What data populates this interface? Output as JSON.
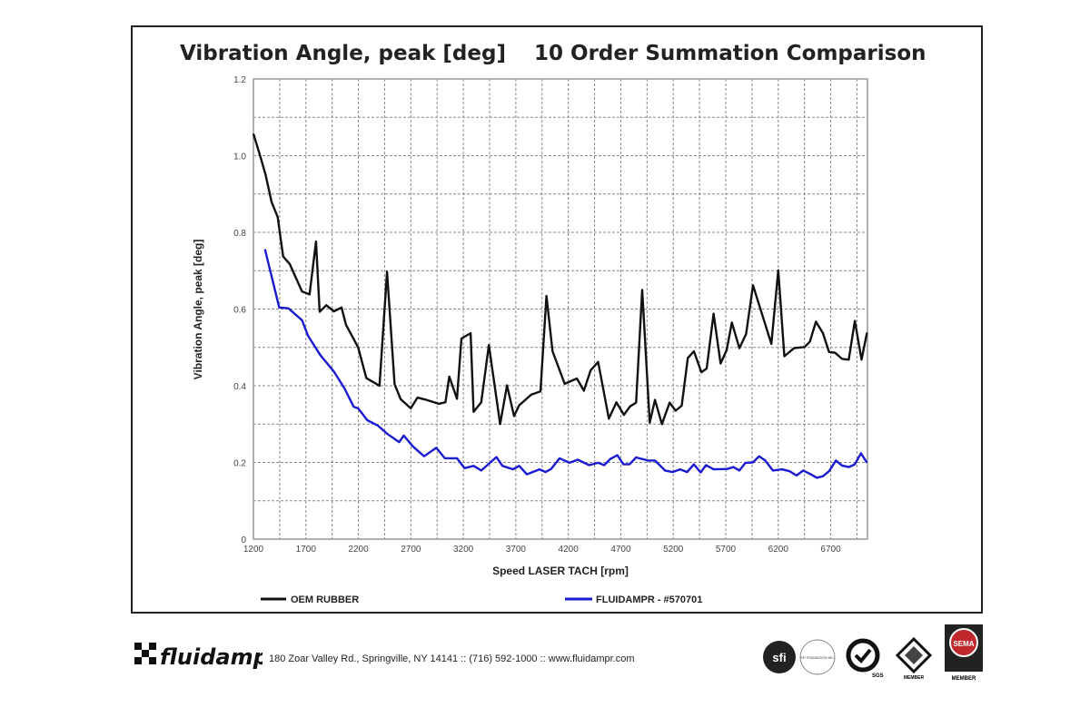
{
  "chart_data": {
    "type": "line",
    "title_left": "Vibration Angle, peak [deg]",
    "title_right": "10 Order Summation Comparison",
    "xlabel": "Speed LASER TACH [rpm]",
    "ylabel": "Vibration Angle, peak [deg]",
    "xlim": [
      1200,
      7050
    ],
    "ylim": [
      0,
      1.2
    ],
    "x_ticks": [
      1200,
      1700,
      2200,
      2700,
      3200,
      3700,
      4200,
      4700,
      5200,
      5700,
      6200,
      6700
    ],
    "y_ticks": [
      "0",
      "0.2",
      "0.4",
      "0.6",
      "0.8",
      "1.0",
      "1.2"
    ],
    "grid": true,
    "legend_position": "bottom",
    "series": [
      {
        "name": "OEM RUBBER",
        "color": "#111111",
        "points": [
          [
            1200,
            1.057
          ],
          [
            1258,
            1.005
          ],
          [
            1316,
            0.95
          ],
          [
            1373,
            0.879
          ],
          [
            1431,
            0.84
          ],
          [
            1483,
            0.737
          ],
          [
            1547,
            0.717
          ],
          [
            1663,
            0.646
          ],
          [
            1735,
            0.638
          ],
          [
            1796,
            0.776
          ],
          [
            1831,
            0.593
          ],
          [
            1894,
            0.61
          ],
          [
            1967,
            0.594
          ],
          [
            2039,
            0.604
          ],
          [
            2082,
            0.559
          ],
          [
            2198,
            0.5
          ],
          [
            2276,
            0.42
          ],
          [
            2401,
            0.4
          ],
          [
            2473,
            0.697
          ],
          [
            2545,
            0.404
          ],
          [
            2603,
            0.365
          ],
          [
            2699,
            0.341
          ],
          [
            2763,
            0.369
          ],
          [
            2849,
            0.363
          ],
          [
            2965,
            0.353
          ],
          [
            3029,
            0.357
          ],
          [
            3066,
            0.424
          ],
          [
            3139,
            0.366
          ],
          [
            3182,
            0.523
          ],
          [
            3269,
            0.537
          ],
          [
            3298,
            0.332
          ],
          [
            3370,
            0.357
          ],
          [
            3443,
            0.506
          ],
          [
            3550,
            0.3
          ],
          [
            3616,
            0.401
          ],
          [
            3683,
            0.321
          ],
          [
            3732,
            0.349
          ],
          [
            3848,
            0.377
          ],
          [
            3935,
            0.385
          ],
          [
            3992,
            0.634
          ],
          [
            4050,
            0.49
          ],
          [
            4166,
            0.405
          ],
          [
            4282,
            0.419
          ],
          [
            4348,
            0.387
          ],
          [
            4412,
            0.44
          ],
          [
            4484,
            0.462
          ],
          [
            4586,
            0.314
          ],
          [
            4658,
            0.357
          ],
          [
            4730,
            0.324
          ],
          [
            4788,
            0.346
          ],
          [
            4846,
            0.356
          ],
          [
            4904,
            0.65
          ],
          [
            4976,
            0.304
          ],
          [
            5026,
            0.363
          ],
          [
            5092,
            0.3
          ],
          [
            5165,
            0.356
          ],
          [
            5222,
            0.335
          ],
          [
            5280,
            0.348
          ],
          [
            5338,
            0.472
          ],
          [
            5396,
            0.49
          ],
          [
            5468,
            0.435
          ],
          [
            5518,
            0.445
          ],
          [
            5584,
            0.588
          ],
          [
            5651,
            0.458
          ],
          [
            5709,
            0.493
          ],
          [
            5758,
            0.565
          ],
          [
            5830,
            0.498
          ],
          [
            5894,
            0.535
          ],
          [
            5960,
            0.662
          ],
          [
            6134,
            0.509
          ],
          [
            6200,
            0.701
          ],
          [
            6258,
            0.477
          ],
          [
            6351,
            0.498
          ],
          [
            6452,
            0.501
          ],
          [
            6501,
            0.515
          ],
          [
            6559,
            0.567
          ],
          [
            6626,
            0.537
          ],
          [
            6684,
            0.488
          ],
          [
            6742,
            0.486
          ],
          [
            6808,
            0.47
          ],
          [
            6872,
            0.468
          ],
          [
            6930,
            0.569
          ],
          [
            6994,
            0.468
          ],
          [
            7046,
            0.539
          ]
        ]
      },
      {
        "name": "FLUIDAMPR - #570701",
        "color": "#1a1ad0",
        "points": [
          [
            1310,
            0.756
          ],
          [
            1446,
            0.604
          ],
          [
            1533,
            0.602
          ],
          [
            1663,
            0.571
          ],
          [
            1721,
            0.53
          ],
          [
            1837,
            0.48
          ],
          [
            1967,
            0.437
          ],
          [
            2068,
            0.393
          ],
          [
            2155,
            0.345
          ],
          [
            2198,
            0.341
          ],
          [
            2285,
            0.31
          ],
          [
            2386,
            0.296
          ],
          [
            2473,
            0.275
          ],
          [
            2589,
            0.253
          ],
          [
            2632,
            0.27
          ],
          [
            2719,
            0.242
          ],
          [
            2826,
            0.216
          ],
          [
            2942,
            0.238
          ],
          [
            3023,
            0.211
          ],
          [
            3139,
            0.211
          ],
          [
            3211,
            0.185
          ],
          [
            3298,
            0.191
          ],
          [
            3370,
            0.179
          ],
          [
            3515,
            0.214
          ],
          [
            3573,
            0.191
          ],
          [
            3674,
            0.182
          ],
          [
            3732,
            0.191
          ],
          [
            3805,
            0.169
          ],
          [
            3926,
            0.182
          ],
          [
            3984,
            0.175
          ],
          [
            4036,
            0.183
          ],
          [
            4117,
            0.211
          ],
          [
            4210,
            0.199
          ],
          [
            4290,
            0.207
          ],
          [
            4398,
            0.193
          ],
          [
            4484,
            0.199
          ],
          [
            4542,
            0.193
          ],
          [
            4600,
            0.209
          ],
          [
            4667,
            0.219
          ],
          [
            4725,
            0.195
          ],
          [
            4783,
            0.195
          ],
          [
            4846,
            0.213
          ],
          [
            4962,
            0.205
          ],
          [
            5026,
            0.205
          ],
          [
            5121,
            0.179
          ],
          [
            5193,
            0.175
          ],
          [
            5266,
            0.182
          ],
          [
            5332,
            0.175
          ],
          [
            5396,
            0.195
          ],
          [
            5460,
            0.174
          ],
          [
            5512,
            0.193
          ],
          [
            5584,
            0.182
          ],
          [
            5714,
            0.183
          ],
          [
            5772,
            0.188
          ],
          [
            5830,
            0.179
          ],
          [
            5888,
            0.199
          ],
          [
            5960,
            0.2
          ],
          [
            6018,
            0.216
          ],
          [
            6076,
            0.205
          ],
          [
            6149,
            0.179
          ],
          [
            6235,
            0.182
          ],
          [
            6308,
            0.177
          ],
          [
            6374,
            0.166
          ],
          [
            6438,
            0.179
          ],
          [
            6510,
            0.169
          ],
          [
            6568,
            0.16
          ],
          [
            6626,
            0.164
          ],
          [
            6684,
            0.177
          ],
          [
            6750,
            0.205
          ],
          [
            6808,
            0.192
          ],
          [
            6872,
            0.188
          ],
          [
            6930,
            0.195
          ],
          [
            6988,
            0.224
          ],
          [
            7046,
            0.199
          ]
        ]
      }
    ]
  },
  "footer": {
    "brand_logo": "fluidampr",
    "address": "180 Zoar Valley Rd., Springville, NY  14141  ::  (716) 592-1000  ::  www.fluidampr.com",
    "badges": [
      "sfi",
      "SFI FOUNDATION INC.",
      "SGS",
      "MEMBER",
      "SEMA",
      "MEMBER"
    ]
  }
}
